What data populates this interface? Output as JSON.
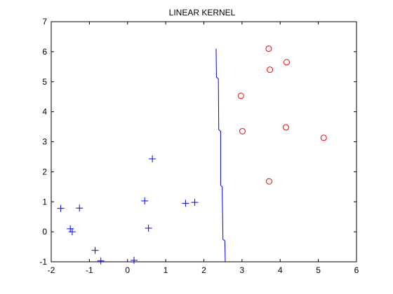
{
  "chart_data": {
    "type": "scatter",
    "title": "LINEAR KERNEL",
    "xlabel": "",
    "ylabel": "",
    "xlim": [
      -2,
      6
    ],
    "ylim": [
      -1,
      7
    ],
    "xticks": [
      -2,
      -1,
      0,
      1,
      2,
      3,
      4,
      5,
      6
    ],
    "yticks": [
      -1,
      0,
      1,
      2,
      3,
      4,
      5,
      6,
      7
    ],
    "grid": false,
    "legend": "none",
    "series": [
      {
        "marker": "plus",
        "color": "#0000ff",
        "points": [
          [
            -1.75,
            0.78
          ],
          [
            -1.26,
            0.79
          ],
          [
            -1.5,
            0.1
          ],
          [
            -1.45,
            0.0
          ],
          [
            -0.85,
            -0.62
          ],
          [
            -0.7,
            -0.97
          ],
          [
            0.17,
            -0.95
          ],
          [
            0.45,
            1.03
          ],
          [
            0.65,
            2.43
          ],
          [
            0.55,
            0.12
          ],
          [
            1.52,
            0.95
          ],
          [
            1.76,
            0.98
          ]
        ]
      },
      {
        "marker": "circle",
        "color": "#ff0000",
        "points": [
          [
            3.7,
            6.1
          ],
          [
            3.73,
            5.4
          ],
          [
            4.17,
            5.65
          ],
          [
            2.97,
            4.53
          ],
          [
            3.01,
            3.35
          ],
          [
            4.15,
            3.48
          ],
          [
            5.14,
            3.13
          ],
          [
            3.71,
            1.68
          ]
        ]
      },
      {
        "type": "line",
        "color": "#0000ff",
        "points": [
          [
            2.32,
            6.1
          ],
          [
            2.33,
            5.15
          ],
          [
            2.38,
            5.1
          ],
          [
            2.39,
            3.4
          ],
          [
            2.44,
            3.35
          ],
          [
            2.44,
            1.55
          ],
          [
            2.48,
            1.5
          ],
          [
            2.5,
            -0.25
          ],
          [
            2.55,
            -0.3
          ],
          [
            2.56,
            -1.0
          ]
        ]
      }
    ]
  }
}
